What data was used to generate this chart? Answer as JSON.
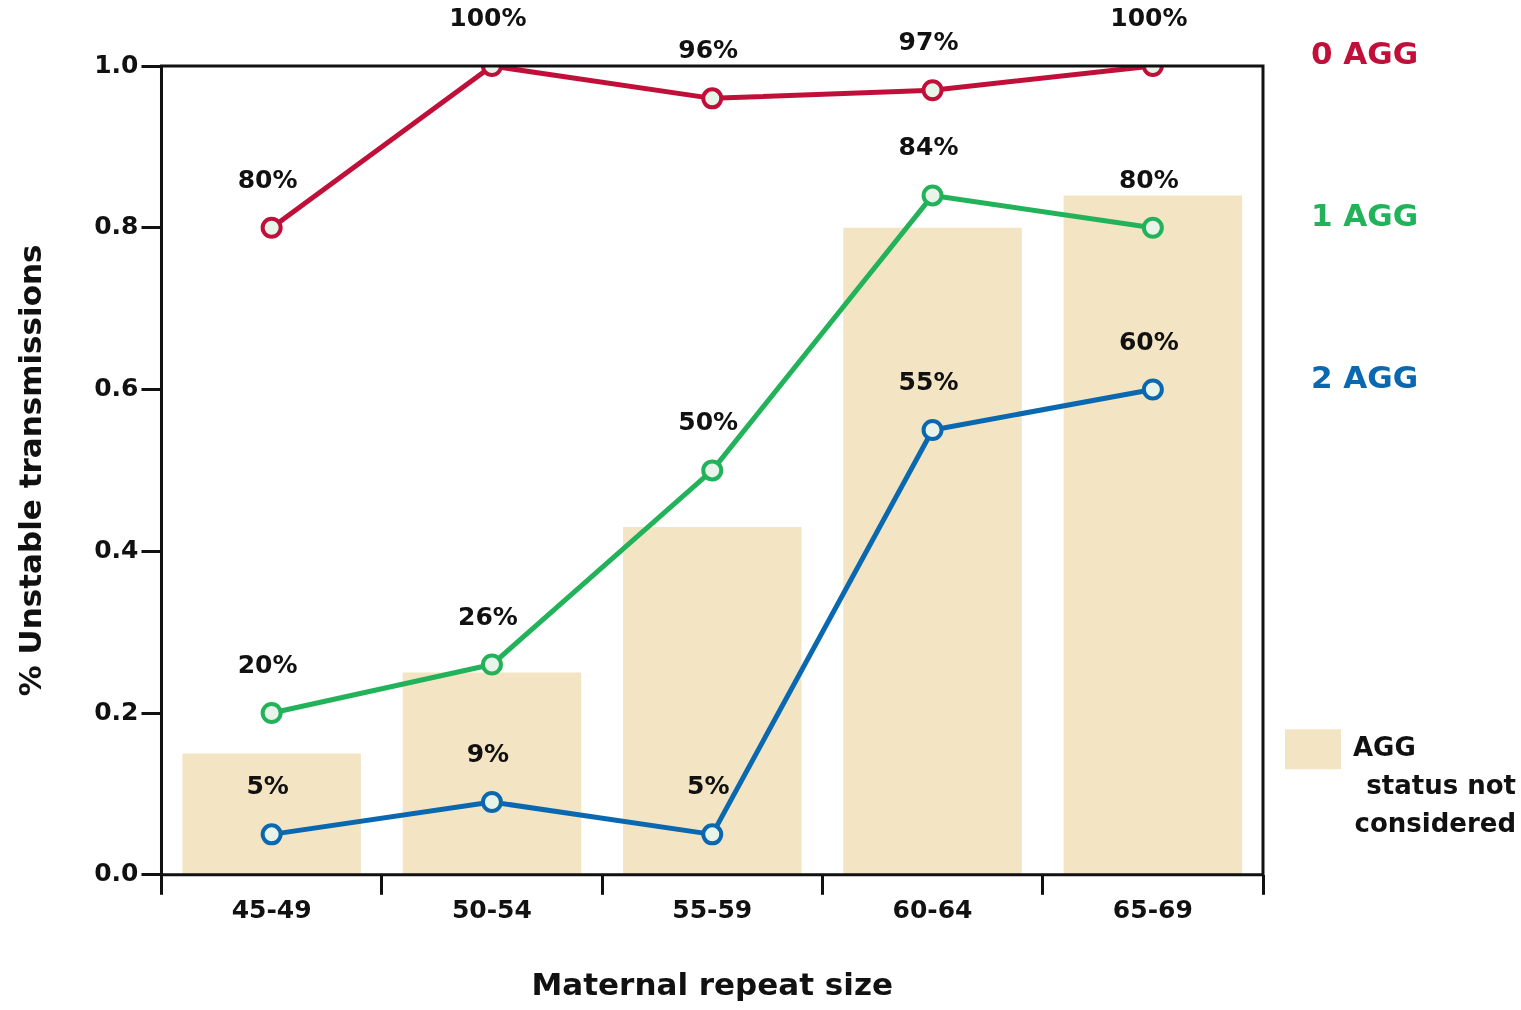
{
  "chart_data": {
    "type": "line",
    "xlabel": "Maternal repeat size",
    "ylabel": "% Unstable transmissions",
    "categories": [
      "45-49",
      "50-54",
      "55-59",
      "60-64",
      "65-69"
    ],
    "ylim": [
      0,
      1
    ],
    "yticks": [
      {
        "value": 0,
        "label": "0.0"
      },
      {
        "value": 0.2,
        "label": "0.2"
      },
      {
        "value": 0.4,
        "label": "0.4"
      },
      {
        "value": 0.6,
        "label": "0.6"
      },
      {
        "value": 0.8,
        "label": "0.8"
      },
      {
        "value": 1,
        "label": "1.0"
      }
    ],
    "grid": false,
    "legend": "right",
    "marker": "circle",
    "line_style": "solid",
    "series": [
      {
        "name": "AGG status not considered",
        "type": "bar",
        "color": "#f3e5c4",
        "values": [
          0.15,
          0.25,
          0.43,
          0.8,
          0.84
        ]
      },
      {
        "name": "0 AGG",
        "color": "#c0103a",
        "values": [
          0.8,
          1.0,
          0.96,
          0.97,
          1.0
        ],
        "value_labels": [
          "80%",
          "100%",
          "96%",
          "97%",
          "100%"
        ]
      },
      {
        "name": "1 AGG",
        "color": "#22b35a",
        "values": [
          0.2,
          0.26,
          0.5,
          0.84,
          0.8
        ],
        "value_labels": [
          "20%",
          "26%",
          "50%",
          "84%",
          "80%"
        ]
      },
      {
        "name": "2 AGG",
        "color": "#0a68b0",
        "values": [
          0.05,
          0.09,
          0.05,
          0.55,
          0.6
        ],
        "value_labels": [
          "5%",
          "9%",
          "5%",
          "55%",
          "60%"
        ]
      }
    ]
  }
}
